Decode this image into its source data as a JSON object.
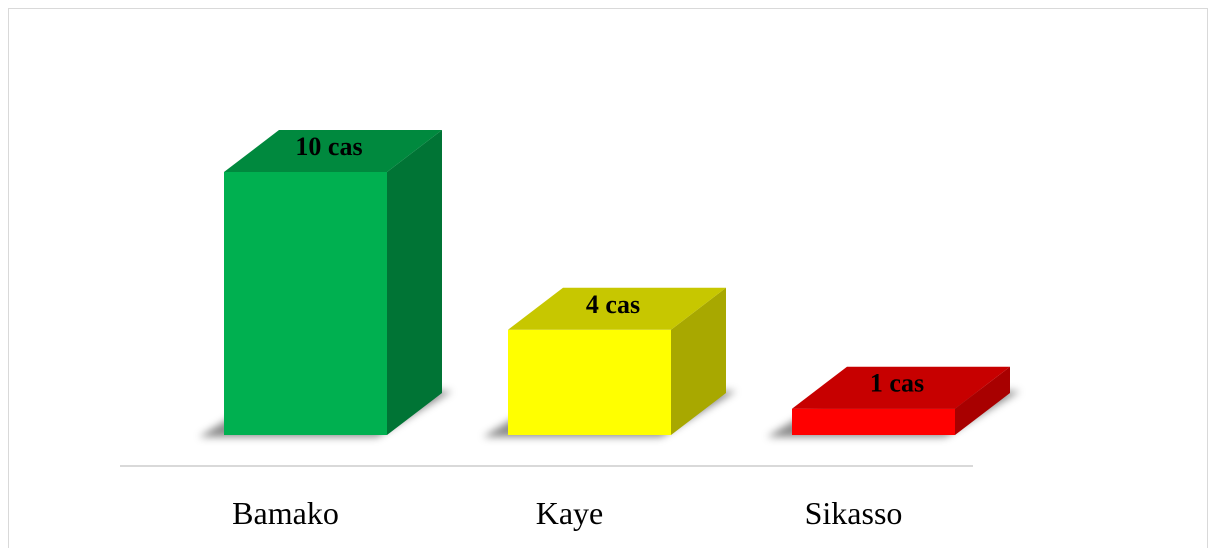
{
  "chart_data": {
    "type": "bar",
    "categories": [
      "Bamako",
      "Kaye",
      "Sikasso"
    ],
    "values": [
      10,
      4,
      1
    ],
    "value_labels": [
      "10 cas",
      "4 cas",
      "1 cas"
    ],
    "colors": [
      "#00b050",
      "#ffff00",
      "#ff0000"
    ],
    "ylim": [
      0,
      10
    ],
    "grid": false,
    "legend": "none",
    "style": "3d-column"
  }
}
